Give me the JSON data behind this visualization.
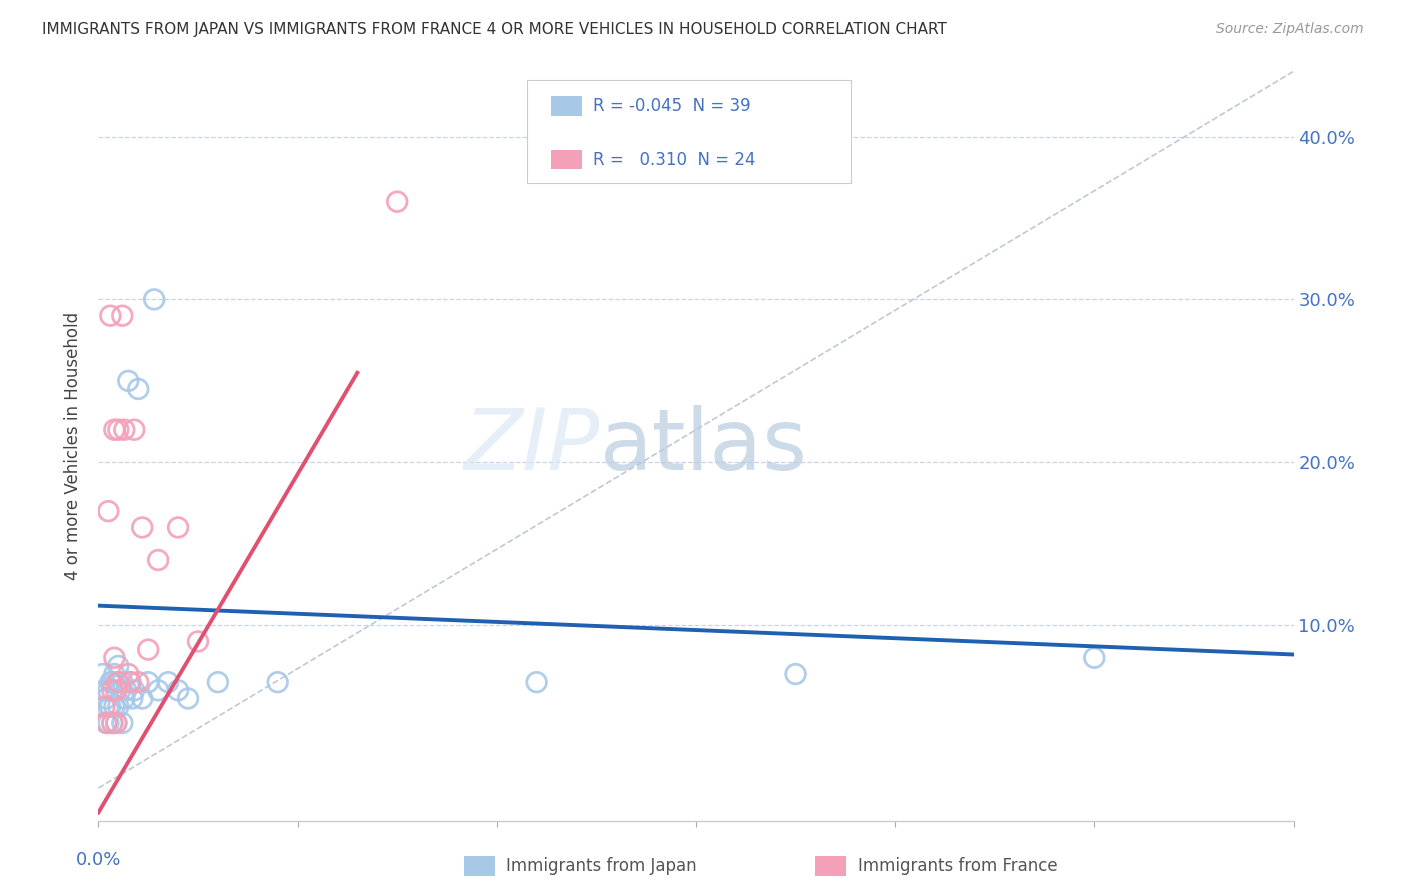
{
  "title": "IMMIGRANTS FROM JAPAN VS IMMIGRANTS FROM FRANCE 4 OR MORE VEHICLES IN HOUSEHOLD CORRELATION CHART",
  "source": "Source: ZipAtlas.com",
  "ylabel": "4 or more Vehicles in Household",
  "ytick_values": [
    0.1,
    0.2,
    0.3,
    0.4
  ],
  "xlim": [
    0.0,
    0.6
  ],
  "ylim": [
    -0.02,
    0.44
  ],
  "legend1_R": "-0.045",
  "legend1_N": "39",
  "legend2_R": "0.310",
  "legend2_N": "24",
  "color_japan": "#a8c8e8",
  "color_france": "#f4a0b8",
  "line_color_japan": "#2060b0",
  "line_color_france": "#e05070",
  "diag_line_color": "#c0c8d8",
  "grid_color": "#c8d4e8",
  "background_color": "#ffffff",
  "legend_text_color": "#4472c4",
  "japan_line_x0": 0.0,
  "japan_line_y0": 0.112,
  "japan_line_x1": 0.6,
  "japan_line_y1": 0.082,
  "france_line_x0": 0.0,
  "france_line_y0": -0.015,
  "france_line_x1": 0.13,
  "france_line_y1": 0.255,
  "japan_x": [
    0.002,
    0.003,
    0.004,
    0.004,
    0.005,
    0.005,
    0.005,
    0.006,
    0.006,
    0.007,
    0.007,
    0.008,
    0.008,
    0.009,
    0.009,
    0.01,
    0.01,
    0.011,
    0.012,
    0.012,
    0.013,
    0.014,
    0.015,
    0.016,
    0.017,
    0.018,
    0.02,
    0.022,
    0.025,
    0.028,
    0.03,
    0.035,
    0.04,
    0.045,
    0.06,
    0.09,
    0.22,
    0.35,
    0.5
  ],
  "japan_y": [
    0.07,
    0.06,
    0.055,
    0.04,
    0.06,
    0.05,
    0.04,
    0.065,
    0.05,
    0.065,
    0.04,
    0.07,
    0.05,
    0.065,
    0.04,
    0.075,
    0.05,
    0.06,
    0.065,
    0.04,
    0.055,
    0.06,
    0.25,
    0.065,
    0.055,
    0.06,
    0.245,
    0.055,
    0.065,
    0.3,
    0.06,
    0.065,
    0.06,
    0.055,
    0.065,
    0.065,
    0.065,
    0.07,
    0.08
  ],
  "france_x": [
    0.003,
    0.004,
    0.005,
    0.006,
    0.007,
    0.007,
    0.008,
    0.008,
    0.009,
    0.009,
    0.01,
    0.01,
    0.012,
    0.013,
    0.015,
    0.016,
    0.018,
    0.02,
    0.022,
    0.025,
    0.03,
    0.04,
    0.05,
    0.15
  ],
  "france_y": [
    0.05,
    0.04,
    0.17,
    0.29,
    0.06,
    0.04,
    0.22,
    0.08,
    0.06,
    0.04,
    0.22,
    0.065,
    0.29,
    0.22,
    0.07,
    0.065,
    0.22,
    0.065,
    0.16,
    0.085,
    0.14,
    0.16,
    0.09,
    0.36
  ]
}
